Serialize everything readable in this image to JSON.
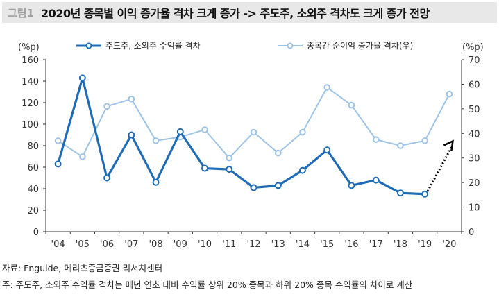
{
  "figure_label": "그림1",
  "title": "2020년 종목별 이익 증가율 격차 크게 증가 -> 주도주, 소외주 격차도 크게 증가 전망",
  "source": "자료: Fnguide, 메리츠종금증권 리서치센터",
  "note": "주: 주도주, 소외주 수익률 격차는 매년 연초 대비 수익률 상위 20% 종목과 하위 20% 종목 수익률의 차이로 계산",
  "chart_data": {
    "type": "line",
    "categories": [
      "'04",
      "'05",
      "'06",
      "'07",
      "'08",
      "'09",
      "'10",
      "'11",
      "'12",
      "'13",
      "'14",
      "'15",
      "'16",
      "'17",
      "'18",
      "'19",
      "'20"
    ],
    "y_left": {
      "unit": "(%p)",
      "range": [
        0,
        160
      ],
      "ticks": [
        0,
        20,
        40,
        60,
        80,
        100,
        120,
        140,
        160
      ]
    },
    "y_right": {
      "unit": "(%p)",
      "range": [
        0,
        70
      ],
      "ticks": [
        0,
        10,
        20,
        30,
        40,
        50,
        60,
        70
      ]
    },
    "grid": false,
    "legend": "top",
    "series": [
      {
        "name": "주도주, 소외주 수익률 격차",
        "axis": "left",
        "color": "#1f6bb5",
        "values": [
          63,
          143,
          50,
          90,
          46,
          93,
          59,
          58,
          41,
          43,
          57,
          76,
          43,
          48,
          36,
          35,
          null
        ]
      },
      {
        "name": "종목간 순이익 증가율 격차(우)",
        "axis": "right",
        "color": "#9dc3e6",
        "values": [
          37,
          30.5,
          51,
          54,
          37,
          38.5,
          41.5,
          30,
          40.5,
          32,
          40.5,
          58.7,
          51.5,
          37.5,
          35,
          37,
          56
        ]
      }
    ],
    "annotation": {
      "type": "dotted-arrow",
      "from": "'19",
      "to": "'20",
      "style": "black dotted"
    }
  }
}
